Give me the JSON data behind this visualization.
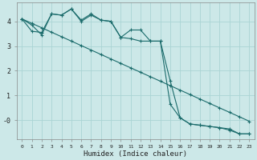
{
  "xlabel": "Humidex (Indice chaleur)",
  "background_color": "#cce8e8",
  "grid_color": "#aad4d4",
  "line_color": "#1a6b6b",
  "xlim": [
    -0.5,
    23.5
  ],
  "ylim": [
    -0.75,
    4.75
  ],
  "line1_x": [
    0,
    1,
    2,
    3,
    4,
    5,
    6,
    7,
    8,
    9,
    10,
    11,
    12,
    13,
    14,
    15,
    16,
    17,
    18,
    19,
    20,
    21,
    22,
    23
  ],
  "line1_y": [
    4.1,
    3.6,
    3.55,
    4.3,
    4.25,
    4.5,
    4.05,
    4.3,
    4.05,
    4.0,
    3.35,
    3.3,
    3.2,
    3.2,
    3.2,
    0.65,
    0.1,
    -0.15,
    -0.2,
    -0.25,
    -0.3,
    -0.35,
    -0.55,
    -0.55
  ],
  "line2_x": [
    0,
    1,
    2,
    3,
    4,
    5,
    6,
    7,
    8,
    9,
    10,
    11,
    12,
    13,
    14,
    15,
    16,
    17,
    18,
    19,
    20,
    21,
    22,
    23
  ],
  "line2_y": [
    4.1,
    3.85,
    3.45,
    4.3,
    4.25,
    4.5,
    4.0,
    4.25,
    4.05,
    4.0,
    3.35,
    3.65,
    3.65,
    3.2,
    3.2,
    1.6,
    0.1,
    -0.15,
    -0.2,
    -0.25,
    -0.3,
    -0.4,
    -0.55,
    -0.55
  ],
  "line3_x": [
    0,
    1,
    2,
    3,
    4,
    5,
    6,
    7,
    8,
    9,
    10,
    11,
    12,
    13,
    14,
    15,
    16,
    17,
    18,
    19,
    20,
    21,
    22,
    23
  ],
  "line3_y": [
    4.1,
    3.92,
    3.74,
    3.56,
    3.38,
    3.2,
    3.02,
    2.84,
    2.66,
    2.48,
    2.3,
    2.12,
    1.94,
    1.76,
    1.58,
    1.4,
    1.22,
    1.04,
    0.86,
    0.68,
    0.5,
    0.32,
    0.14,
    -0.04
  ],
  "xticks": [
    0,
    1,
    2,
    3,
    4,
    5,
    6,
    7,
    8,
    9,
    10,
    11,
    12,
    13,
    14,
    15,
    16,
    17,
    18,
    19,
    20,
    21,
    22,
    23
  ],
  "yticks": [
    0,
    1,
    2,
    3,
    4
  ],
  "ytick_labels": [
    "-0",
    "1",
    "2",
    "3",
    "4"
  ]
}
